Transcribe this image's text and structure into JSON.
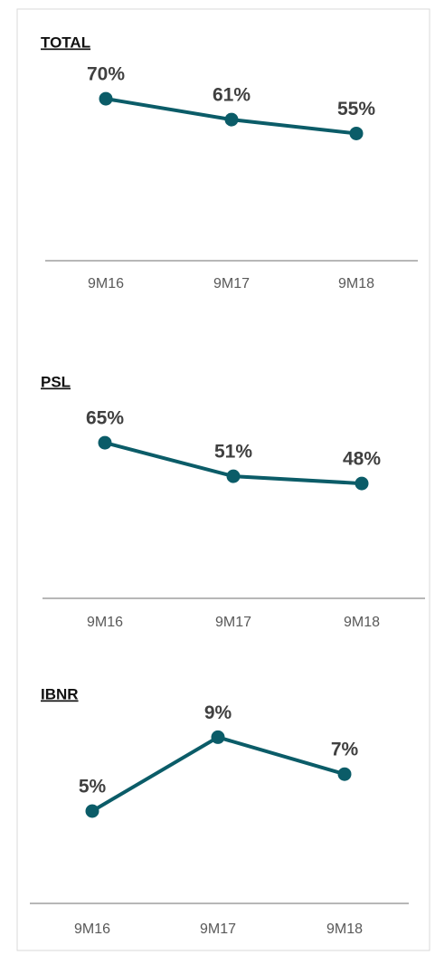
{
  "chart_data": [
    {
      "type": "line",
      "title": "TOTAL",
      "categories": [
        "9M16",
        "9M17",
        "9M18"
      ],
      "values": [
        70,
        61,
        55
      ],
      "value_labels": [
        "70%",
        "61%",
        "55%"
      ],
      "color": "#0b5c68",
      "ylim": [
        0,
        90
      ]
    },
    {
      "type": "line",
      "title": "PSL",
      "categories": [
        "9M16",
        "9M17",
        "9M18"
      ],
      "values": [
        65,
        51,
        48
      ],
      "value_labels": [
        "65%",
        "51%",
        "48%"
      ],
      "color": "#0b5c68",
      "ylim": [
        0,
        90
      ]
    },
    {
      "type": "line",
      "title": "IBNR",
      "categories": [
        "9M16",
        "9M17",
        "9M18"
      ],
      "values": [
        5,
        9,
        7
      ],
      "value_labels": [
        "5%",
        "9%",
        "7%"
      ],
      "color": "#0b5c68",
      "ylim": [
        0,
        10
      ]
    }
  ]
}
